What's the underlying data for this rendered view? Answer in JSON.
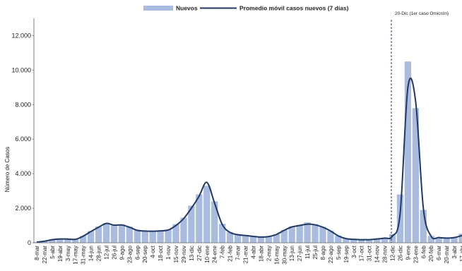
{
  "chart_data": {
    "type": "bar",
    "title": "",
    "xlabel": "",
    "ylabel": "Número de Casos",
    "ylim": [
      0,
      13000
    ],
    "y_ticks": [
      "0",
      "2.000",
      "4.000",
      "6.000",
      "8.000",
      "10.000",
      "12.000"
    ],
    "y_tick_values": [
      0,
      2000,
      4000,
      6000,
      8000,
      10000,
      12000
    ],
    "grid": false,
    "legend_position": "top-center",
    "colors": {
      "bars": "#a9bce0",
      "line": "#1f3864",
      "annotation": "#1f3864"
    },
    "categories": [
      "8-mar",
      "22-mar",
      "5-abr",
      "19-abr",
      "3-may",
      "17-may",
      "31-may",
      "14-jun",
      "28-jun",
      "12-jul",
      "26-jul",
      "9-ago",
      "23-ago",
      "6-sep",
      "20-sep",
      "4-oct",
      "18-oct",
      "1-nov",
      "15-nov",
      "29-nov",
      "13-dic",
      "27-dic",
      "10-ene",
      "24-ene",
      "7-feb",
      "21-feb",
      "7-mar",
      "21-mar",
      "4-abr",
      "18-abr",
      "2-may",
      "16-may",
      "30-may",
      "13-jun",
      "27-jun",
      "11-jul",
      "25-jul",
      "8-ago",
      "22-ago",
      "5-sep",
      "19-sep",
      "3-oct",
      "17-oct",
      "31-oct",
      "14-nov",
      "28-nov",
      "12-dic",
      "26-dic",
      "9-ene",
      "23-ene",
      "6-feb",
      "20-feb",
      "6-mar",
      "20-mar",
      "3-abr",
      "17-abr"
    ],
    "series": [
      {
        "name": "Nuevos",
        "type": "bar",
        "values": [
          50,
          100,
          190,
          240,
          230,
          200,
          400,
          680,
          950,
          1150,
          1050,
          1080,
          930,
          740,
          700,
          690,
          720,
          780,
          1080,
          1450,
          2150,
          2800,
          3300,
          2400,
          1100,
          620,
          480,
          440,
          380,
          340,
          380,
          500,
          740,
          950,
          1030,
          1180,
          1080,
          920,
          700,
          420,
          250,
          210,
          190,
          190,
          230,
          290,
          500,
          2800,
          10500,
          7800,
          1900,
          400,
          310,
          290,
          330,
          530
        ]
      },
      {
        "name": "Promedio móvil casos nuevos (7 días)",
        "type": "line",
        "values": [
          40,
          90,
          180,
          220,
          215,
          200,
          380,
          650,
          900,
          1120,
          1020,
          1030,
          900,
          720,
          680,
          670,
          690,
          740,
          1000,
          1400,
          2000,
          2700,
          3500,
          2300,
          1050,
          600,
          470,
          420,
          370,
          330,
          360,
          480,
          720,
          920,
          1000,
          1080,
          1040,
          900,
          680,
          400,
          240,
          200,
          180,
          180,
          220,
          270,
          380,
          1700,
          9000,
          8200,
          2000,
          380,
          300,
          270,
          300,
          420
        ]
      }
    ],
    "annotations": [
      {
        "text": "20-Dic (1er caso Omicrón)",
        "x": "20-dic"
      }
    ]
  }
}
